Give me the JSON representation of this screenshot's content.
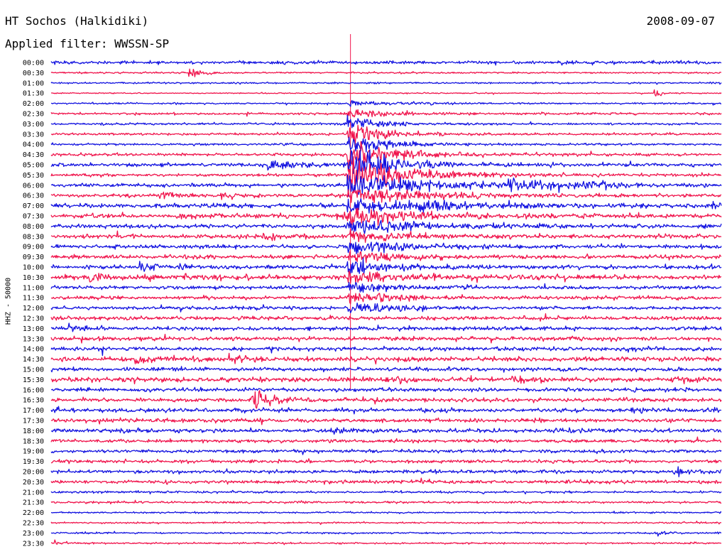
{
  "header": {
    "station": "HT Sochos (Halkidiki)",
    "date": "2008-09-07",
    "filter": "Applied filter: WWSSN-SP"
  },
  "channel_label": "HHZ - 50000",
  "colors": {
    "blue": "#1212e0",
    "red": "#f0144c"
  },
  "chart_data": {
    "type": "line",
    "subtype": "helicorder",
    "rows": [
      "00:00",
      "00:30",
      "01:00",
      "01:30",
      "02:00",
      "02:30",
      "03:00",
      "03:30",
      "04:00",
      "04:30",
      "05:00",
      "05:30",
      "06:00",
      "06:30",
      "07:00",
      "07:30",
      "08:00",
      "08:30",
      "09:00",
      "09:30",
      "10:00",
      "10:30",
      "11:00",
      "11:30",
      "12:00",
      "12:30",
      "13:00",
      "13:30",
      "14:00",
      "14:30",
      "15:00",
      "15:30",
      "16:00",
      "16:30",
      "17:00",
      "17:30",
      "18:00",
      "18:30",
      "19:00",
      "19:30",
      "20:00",
      "20:30",
      "21:00",
      "21:30",
      "22:00",
      "22:30",
      "23:00",
      "23:30"
    ],
    "row_minutes": 30,
    "trace_colors_alternate": [
      "blue",
      "red"
    ],
    "noise_level": [
      3,
      1.5,
      1.5,
      1,
      1.5,
      2,
      2,
      2,
      2,
      2.5,
      3,
      2.5,
      3,
      3,
      4,
      4,
      3.5,
      3.5,
      3.5,
      3.5,
      3.5,
      4,
      3,
      3,
      3,
      3.5,
      3.5,
      3.5,
      3.5,
      4,
      3.5,
      4,
      3.5,
      3.5,
      3.5,
      3.5,
      3.5,
      3,
      3,
      3,
      3,
      3,
      2,
      2,
      1.5,
      1.5,
      1.5,
      1.5
    ],
    "events": [
      {
        "row": 0,
        "minute": 13.4,
        "amp": 480,
        "dur": 0.2,
        "kind": "spike"
      },
      {
        "row": 4,
        "minute": 13.4,
        "amp": 4,
        "dur": 2.5,
        "kind": "burst"
      },
      {
        "row": 5,
        "minute": 13.3,
        "amp": 10,
        "dur": 1.5,
        "kind": "burst"
      },
      {
        "row": 6,
        "minute": 13.3,
        "amp": 16,
        "dur": 1.2,
        "kind": "burst"
      },
      {
        "row": 7,
        "minute": 13.3,
        "amp": 22,
        "dur": 1.5,
        "kind": "burst"
      },
      {
        "row": 8,
        "minute": 13.3,
        "amp": 28,
        "dur": 1.5,
        "kind": "burst"
      },
      {
        "row": 9,
        "minute": 13.3,
        "amp": 30,
        "dur": 1.8,
        "kind": "burst"
      },
      {
        "row": 10,
        "minute": 13.3,
        "amp": 30,
        "dur": 2,
        "kind": "burst"
      },
      {
        "row": 11,
        "minute": 13.3,
        "amp": 28,
        "dur": 2.5,
        "kind": "burst"
      },
      {
        "row": 12,
        "minute": 13.3,
        "amp": 22,
        "dur": 3.5,
        "kind": "burst"
      },
      {
        "row": 13,
        "minute": 13.3,
        "amp": 18,
        "dur": 3,
        "kind": "burst"
      },
      {
        "row": 14,
        "minute": 13.3,
        "amp": 14,
        "dur": 3,
        "kind": "burst"
      },
      {
        "row": 15,
        "minute": 13.3,
        "amp": 14,
        "dur": 3,
        "kind": "burst"
      },
      {
        "row": 16,
        "minute": 13.3,
        "amp": 14,
        "dur": 2.5,
        "kind": "burst"
      },
      {
        "row": 17,
        "minute": 13.3,
        "amp": 12,
        "dur": 2,
        "kind": "burst"
      },
      {
        "row": 18,
        "minute": 13.3,
        "amp": 12,
        "dur": 2,
        "kind": "burst"
      },
      {
        "row": 19,
        "minute": 13.3,
        "amp": 12,
        "dur": 2,
        "kind": "burst"
      },
      {
        "row": 20,
        "minute": 13.3,
        "amp": 12,
        "dur": 2,
        "kind": "burst"
      },
      {
        "row": 21,
        "minute": 13.3,
        "amp": 11,
        "dur": 2,
        "kind": "burst"
      },
      {
        "row": 22,
        "minute": 13.3,
        "amp": 11,
        "dur": 2,
        "kind": "burst"
      },
      {
        "row": 23,
        "minute": 13.3,
        "amp": 11,
        "dur": 2,
        "kind": "burst"
      },
      {
        "row": 24,
        "minute": 13.3,
        "amp": 9,
        "dur": 2,
        "kind": "burst"
      },
      {
        "row": 1,
        "minute": 6.2,
        "amp": 9,
        "dur": 0.5,
        "kind": "burst"
      },
      {
        "row": 3,
        "minute": 27.0,
        "amp": 7,
        "dur": 0.4,
        "kind": "burst"
      },
      {
        "row": 10,
        "minute": 9.5,
        "amp": 9,
        "dur": 2.2,
        "kind": "burst"
      },
      {
        "row": 11,
        "minute": 14.5,
        "amp": 7,
        "dur": 1,
        "kind": "burst"
      },
      {
        "row": 12,
        "minute": 20.5,
        "amp": 12,
        "dur": 1.6,
        "kind": "burst"
      },
      {
        "row": 12,
        "minute": 23.8,
        "amp": 9,
        "dur": 1.2,
        "kind": "burst"
      },
      {
        "row": 13,
        "minute": 4.8,
        "amp": 9,
        "dur": 0.6,
        "kind": "burst"
      },
      {
        "row": 13,
        "minute": 7.6,
        "amp": 9,
        "dur": 0.5,
        "kind": "burst"
      },
      {
        "row": 14,
        "minute": 16.5,
        "amp": 7,
        "dur": 1.6,
        "kind": "burst"
      },
      {
        "row": 14,
        "minute": 29.6,
        "amp": 7,
        "dur": 0.8,
        "kind": "burst"
      },
      {
        "row": 15,
        "minute": 12.5,
        "amp": 7,
        "dur": 1,
        "kind": "burst"
      },
      {
        "row": 17,
        "minute": 9.5,
        "amp": 5,
        "dur": 1,
        "kind": "burst"
      },
      {
        "row": 18,
        "minute": 14.5,
        "amp": 6,
        "dur": 0.6,
        "kind": "burst"
      },
      {
        "row": 20,
        "minute": 4.0,
        "amp": 7,
        "dur": 1.2,
        "kind": "burst"
      },
      {
        "row": 21,
        "minute": 1.5,
        "amp": 6,
        "dur": 1.2,
        "kind": "burst"
      },
      {
        "row": 21,
        "minute": 6.0,
        "amp": 6,
        "dur": 1.4,
        "kind": "burst"
      },
      {
        "row": 24,
        "minute": 14.5,
        "amp": 5,
        "dur": 1,
        "kind": "burst"
      },
      {
        "row": 26,
        "minute": 0.8,
        "amp": 6,
        "dur": 0.6,
        "kind": "burst"
      },
      {
        "row": 29,
        "minute": 3.8,
        "amp": 6,
        "dur": 1.2,
        "kind": "burst"
      },
      {
        "row": 29,
        "minute": 8.0,
        "amp": 6,
        "dur": 0.8,
        "kind": "burst"
      },
      {
        "row": 31,
        "minute": 15.0,
        "amp": 6,
        "dur": 1,
        "kind": "burst"
      },
      {
        "row": 31,
        "minute": 20.5,
        "amp": 6,
        "dur": 0.8,
        "kind": "burst"
      },
      {
        "row": 31,
        "minute": 27.8,
        "amp": 6,
        "dur": 1,
        "kind": "burst"
      },
      {
        "row": 33,
        "minute": 8.9,
        "amp": 16,
        "dur": 1.1,
        "kind": "burst"
      },
      {
        "row": 34,
        "minute": 26.0,
        "amp": 6,
        "dur": 0.6,
        "kind": "burst"
      },
      {
        "row": 36,
        "minute": 23.2,
        "amp": 6,
        "dur": 0.6,
        "kind": "burst"
      },
      {
        "row": 36,
        "minute": 12.5,
        "amp": 5,
        "dur": 1,
        "kind": "burst"
      },
      {
        "row": 40,
        "minute": 27.9,
        "amp": 6,
        "dur": 0.8,
        "kind": "burst"
      },
      {
        "row": 41,
        "minute": 16.6,
        "amp": 5,
        "dur": 0.6,
        "kind": "burst"
      },
      {
        "row": 47,
        "minute": 0.2,
        "amp": 6,
        "dur": 0.3,
        "kind": "burst"
      },
      {
        "row": 46,
        "minute": 27.2,
        "amp": 4,
        "dur": 0.4,
        "kind": "burst"
      }
    ]
  }
}
